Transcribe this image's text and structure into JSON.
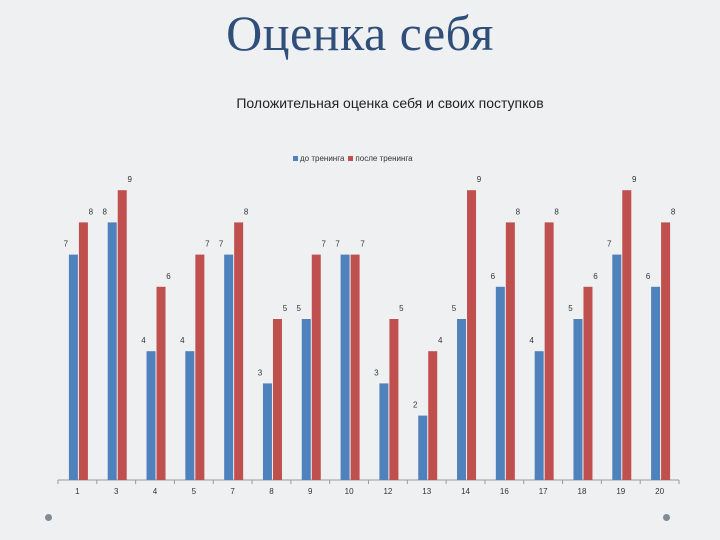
{
  "slide": {
    "title": "Оценка себя"
  },
  "legend": {
    "before_label": "до тренинга",
    "after_label": "после тренинга"
  },
  "colors": {
    "before": "#4f81bd",
    "after": "#c0504d"
  },
  "chart_data": {
    "type": "bar",
    "title": "Положительная оценка себя и своих поступков",
    "xlabel": "",
    "ylabel": "",
    "ylim": [
      0,
      9.5
    ],
    "grid": false,
    "legend_position": "top",
    "categories": [
      "1",
      "3",
      "4",
      "5",
      "7",
      "8",
      "9",
      "10",
      "12",
      "13",
      "14",
      "16",
      "17",
      "18",
      "19",
      "20"
    ],
    "series": [
      {
        "name": "до тренинга",
        "values": [
          7,
          8,
          4,
          4,
          7,
          3,
          5,
          7,
          3,
          2,
          5,
          6,
          4,
          5,
          7,
          6
        ]
      },
      {
        "name": "после тренинга",
        "values": [
          8,
          9,
          6,
          7,
          8,
          5,
          7,
          7,
          5,
          4,
          9,
          8,
          8,
          6,
          9,
          8
        ]
      }
    ]
  }
}
